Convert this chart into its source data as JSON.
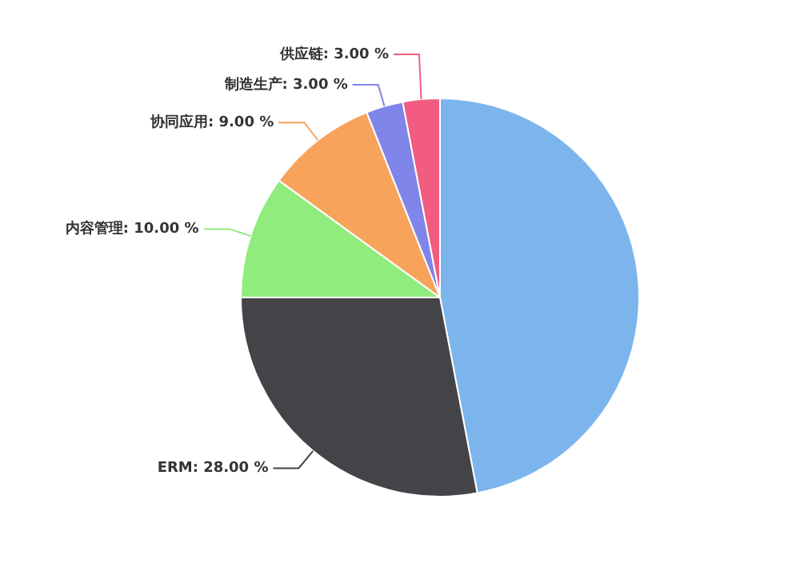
{
  "chart_data": {
    "type": "pie",
    "categories": [
      null,
      "ERM",
      "内容管理",
      "协同应用",
      "制造生产",
      "供应链"
    ],
    "values": [
      47,
      28,
      10,
      9,
      3,
      3
    ],
    "colors": [
      "#7cb5ec",
      "#434348",
      "#90ed7d",
      "#f7a35c",
      "#8085e9",
      "#f15c80"
    ],
    "value_labels": [
      null,
      "28.00 %",
      "10.00 %",
      "9.00 %",
      "3.00 %",
      "3.00 %"
    ],
    "legend": false
  }
}
